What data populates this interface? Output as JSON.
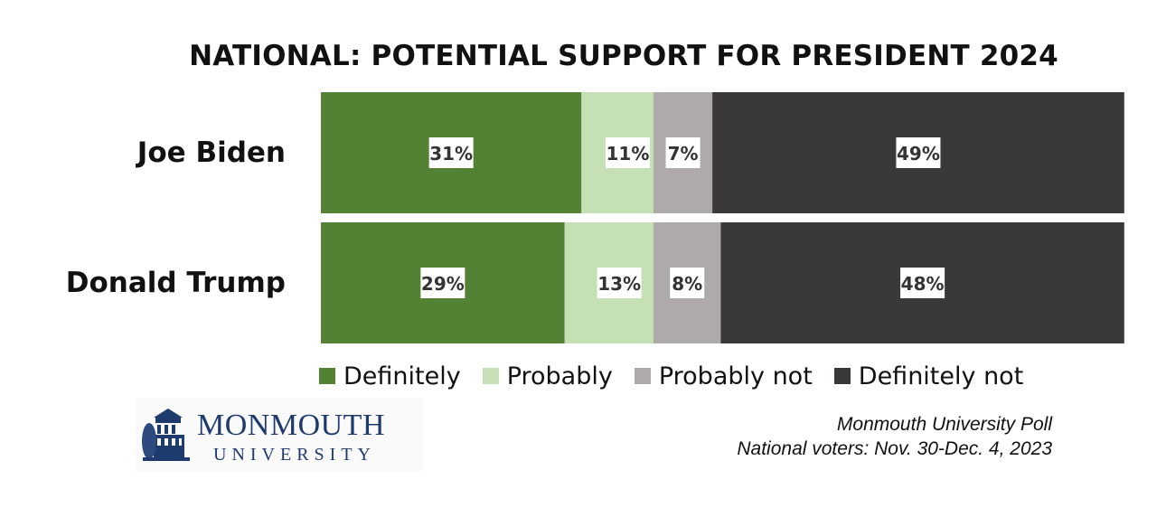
{
  "chart_data": {
    "type": "bar",
    "orientation": "horizontal",
    "stacked": true,
    "title": "NATIONAL: POTENTIAL SUPPORT FOR PRESIDENT 2024",
    "categories": [
      "Joe Biden",
      "Donald Trump"
    ],
    "series": [
      {
        "name": "Definitely",
        "color": "#548235",
        "values": [
          31,
          29
        ],
        "labels": [
          "31%",
          "29%"
        ]
      },
      {
        "name": "Probably",
        "color": "#c5e0b4",
        "values": [
          11,
          13
        ],
        "labels": [
          "11%",
          "13%"
        ]
      },
      {
        "name": "Probably not",
        "color": "#aeaaaa",
        "values": [
          7,
          8
        ],
        "labels": [
          "7%",
          "8%"
        ]
      },
      {
        "name": "Definitely not",
        "color": "#3b3838",
        "values": [
          49,
          48
        ],
        "labels": [
          "49%",
          "48%"
        ]
      }
    ],
    "value_unit": "%",
    "grid": false,
    "legend_position": "bottom"
  },
  "logo": {
    "line1": "MONMOUTH",
    "line2": "UNIVERSITY"
  },
  "source": {
    "line1": "Monmouth University Poll",
    "line2": "National voters: Nov. 30-Dec. 4, 2023"
  }
}
